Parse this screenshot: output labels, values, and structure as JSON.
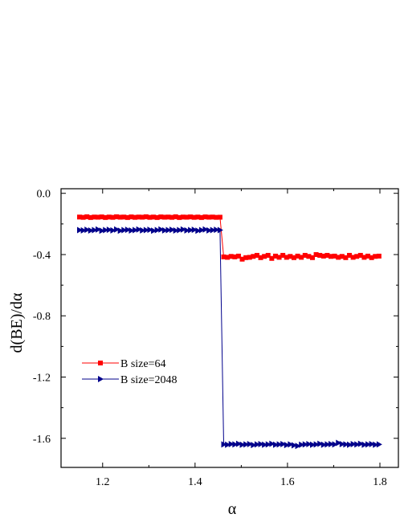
{
  "chart_data": {
    "type": "line",
    "title": "",
    "xlabel": "α",
    "ylabel": "d(BE)/dα",
    "xlim": [
      1.11,
      1.84
    ],
    "ylim": [
      -1.79,
      0.03
    ],
    "xticks": [
      1.2,
      1.4,
      1.6,
      1.8
    ],
    "xtick_labels": [
      "1.2",
      "1.4",
      "1.6",
      "1.8"
    ],
    "yticks": [
      0.0,
      -0.4,
      -0.8,
      -1.2,
      -1.6
    ],
    "ytick_labels": [
      "0.0",
      "-0.4",
      "-0.8",
      "-1.2",
      "-1.6"
    ],
    "grid": false,
    "legend_position": "center-left",
    "series": [
      {
        "name": "B size=64",
        "color": "#ff0000",
        "marker": "square",
        "points": [
          [
            1.15,
            -0.155
          ],
          [
            1.158,
            -0.157
          ],
          [
            1.166,
            -0.153
          ],
          [
            1.174,
            -0.158
          ],
          [
            1.182,
            -0.155
          ],
          [
            1.19,
            -0.156
          ],
          [
            1.198,
            -0.154
          ],
          [
            1.206,
            -0.158
          ],
          [
            1.214,
            -0.155
          ],
          [
            1.222,
            -0.157
          ],
          [
            1.23,
            -0.153
          ],
          [
            1.238,
            -0.156
          ],
          [
            1.246,
            -0.155
          ],
          [
            1.254,
            -0.158
          ],
          [
            1.262,
            -0.154
          ],
          [
            1.27,
            -0.157
          ],
          [
            1.278,
            -0.155
          ],
          [
            1.286,
            -0.156
          ],
          [
            1.294,
            -0.153
          ],
          [
            1.302,
            -0.157
          ],
          [
            1.31,
            -0.155
          ],
          [
            1.318,
            -0.158
          ],
          [
            1.326,
            -0.154
          ],
          [
            1.334,
            -0.156
          ],
          [
            1.342,
            -0.155
          ],
          [
            1.35,
            -0.157
          ],
          [
            1.358,
            -0.153
          ],
          [
            1.366,
            -0.158
          ],
          [
            1.374,
            -0.155
          ],
          [
            1.382,
            -0.156
          ],
          [
            1.39,
            -0.154
          ],
          [
            1.398,
            -0.157
          ],
          [
            1.406,
            -0.155
          ],
          [
            1.414,
            -0.158
          ],
          [
            1.422,
            -0.154
          ],
          [
            1.43,
            -0.156
          ],
          [
            1.438,
            -0.155
          ],
          [
            1.446,
            -0.157
          ],
          [
            1.454,
            -0.156
          ],
          [
            1.462,
            -0.415
          ],
          [
            1.47,
            -0.418
          ],
          [
            1.478,
            -0.412
          ],
          [
            1.486,
            -0.415
          ],
          [
            1.494,
            -0.41
          ],
          [
            1.502,
            -0.43
          ],
          [
            1.51,
            -0.42
          ],
          [
            1.518,
            -0.418
          ],
          [
            1.526,
            -0.412
          ],
          [
            1.534,
            -0.405
          ],
          [
            1.542,
            -0.42
          ],
          [
            1.55,
            -0.412
          ],
          [
            1.558,
            -0.405
          ],
          [
            1.566,
            -0.425
          ],
          [
            1.574,
            -0.41
          ],
          [
            1.582,
            -0.418
          ],
          [
            1.59,
            -0.405
          ],
          [
            1.598,
            -0.418
          ],
          [
            1.606,
            -0.412
          ],
          [
            1.614,
            -0.42
          ],
          [
            1.622,
            -0.41
          ],
          [
            1.63,
            -0.418
          ],
          [
            1.638,
            -0.405
          ],
          [
            1.646,
            -0.412
          ],
          [
            1.654,
            -0.42
          ],
          [
            1.662,
            -0.4
          ],
          [
            1.67,
            -0.405
          ],
          [
            1.678,
            -0.41
          ],
          [
            1.686,
            -0.405
          ],
          [
            1.694,
            -0.412
          ],
          [
            1.702,
            -0.41
          ],
          [
            1.71,
            -0.418
          ],
          [
            1.718,
            -0.412
          ],
          [
            1.726,
            -0.42
          ],
          [
            1.734,
            -0.405
          ],
          [
            1.742,
            -0.418
          ],
          [
            1.75,
            -0.412
          ],
          [
            1.758,
            -0.405
          ],
          [
            1.766,
            -0.418
          ],
          [
            1.774,
            -0.41
          ],
          [
            1.782,
            -0.42
          ],
          [
            1.79,
            -0.412
          ],
          [
            1.798,
            -0.41
          ]
        ]
      },
      {
        "name": "B size=2048",
        "color": "#00008b",
        "marker": "triangle-right",
        "points": [
          [
            1.15,
            -0.24
          ],
          [
            1.158,
            -0.242
          ],
          [
            1.166,
            -0.238
          ],
          [
            1.174,
            -0.243
          ],
          [
            1.182,
            -0.24
          ],
          [
            1.19,
            -0.236
          ],
          [
            1.198,
            -0.244
          ],
          [
            1.206,
            -0.24
          ],
          [
            1.214,
            -0.238
          ],
          [
            1.222,
            -0.242
          ],
          [
            1.23,
            -0.236
          ],
          [
            1.238,
            -0.244
          ],
          [
            1.246,
            -0.24
          ],
          [
            1.254,
            -0.238
          ],
          [
            1.262,
            -0.243
          ],
          [
            1.27,
            -0.24
          ],
          [
            1.278,
            -0.236
          ],
          [
            1.286,
            -0.242
          ],
          [
            1.294,
            -0.24
          ],
          [
            1.302,
            -0.238
          ],
          [
            1.31,
            -0.244
          ],
          [
            1.318,
            -0.24
          ],
          [
            1.326,
            -0.236
          ],
          [
            1.334,
            -0.242
          ],
          [
            1.342,
            -0.24
          ],
          [
            1.35,
            -0.238
          ],
          [
            1.358,
            -0.243
          ],
          [
            1.366,
            -0.24
          ],
          [
            1.374,
            -0.236
          ],
          [
            1.382,
            -0.242
          ],
          [
            1.39,
            -0.24
          ],
          [
            1.398,
            -0.238
          ],
          [
            1.406,
            -0.244
          ],
          [
            1.414,
            -0.24
          ],
          [
            1.422,
            -0.236
          ],
          [
            1.43,
            -0.242
          ],
          [
            1.438,
            -0.24
          ],
          [
            1.446,
            -0.238
          ],
          [
            1.454,
            -0.24
          ],
          [
            1.462,
            -1.64
          ],
          [
            1.47,
            -1.642
          ],
          [
            1.478,
            -1.638
          ],
          [
            1.486,
            -1.64
          ],
          [
            1.494,
            -1.636
          ],
          [
            1.502,
            -1.642
          ],
          [
            1.51,
            -1.64
          ],
          [
            1.518,
            -1.638
          ],
          [
            1.526,
            -1.644
          ],
          [
            1.534,
            -1.64
          ],
          [
            1.542,
            -1.638
          ],
          [
            1.55,
            -1.642
          ],
          [
            1.558,
            -1.64
          ],
          [
            1.566,
            -1.636
          ],
          [
            1.574,
            -1.642
          ],
          [
            1.582,
            -1.64
          ],
          [
            1.59,
            -1.638
          ],
          [
            1.598,
            -1.644
          ],
          [
            1.606,
            -1.64
          ],
          [
            1.614,
            -1.646
          ],
          [
            1.622,
            -1.65
          ],
          [
            1.63,
            -1.642
          ],
          [
            1.638,
            -1.64
          ],
          [
            1.646,
            -1.638
          ],
          [
            1.654,
            -1.642
          ],
          [
            1.662,
            -1.64
          ],
          [
            1.67,
            -1.636
          ],
          [
            1.678,
            -1.642
          ],
          [
            1.686,
            -1.64
          ],
          [
            1.694,
            -1.638
          ],
          [
            1.702,
            -1.64
          ],
          [
            1.71,
            -1.63
          ],
          [
            1.718,
            -1.638
          ],
          [
            1.726,
            -1.64
          ],
          [
            1.734,
            -1.642
          ],
          [
            1.742,
            -1.638
          ],
          [
            1.75,
            -1.64
          ],
          [
            1.758,
            -1.636
          ],
          [
            1.766,
            -1.642
          ],
          [
            1.774,
            -1.64
          ],
          [
            1.782,
            -1.638
          ],
          [
            1.79,
            -1.642
          ],
          [
            1.798,
            -1.64
          ]
        ]
      }
    ]
  }
}
